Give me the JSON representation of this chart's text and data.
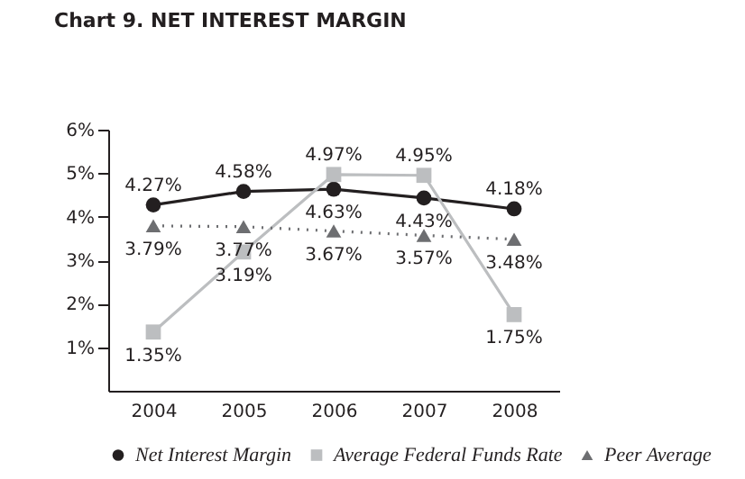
{
  "chart_data": {
    "type": "line",
    "title": "Chart 9. NET INTEREST MARGIN",
    "categories": [
      "2004",
      "2005",
      "2006",
      "2007",
      "2008"
    ],
    "series": [
      {
        "name": "Net Interest Margin",
        "color": "#231f20",
        "marker": "circle",
        "line_style": "solid",
        "values": [
          4.27,
          4.58,
          4.63,
          4.43,
          4.18
        ],
        "value_labels": [
          "4.27%",
          "4.58%",
          "4.63%",
          "4.43%",
          "4.18%"
        ]
      },
      {
        "name": "Average Federal Funds Rate",
        "color": "#bcbec0",
        "marker": "square",
        "line_style": "solid",
        "values": [
          1.35,
          3.19,
          4.97,
          4.95,
          1.75
        ],
        "value_labels": [
          "1.35%",
          "3.19%",
          "4.97%",
          "4.95%",
          "1.75%"
        ]
      },
      {
        "name": "Peer Average",
        "color": "#6d6e71",
        "marker": "triangle",
        "line_style": "dotted",
        "values": [
          3.79,
          3.77,
          3.67,
          3.57,
          3.48
        ],
        "value_labels": [
          "3.79%",
          "3.77%",
          "3.67%",
          "3.57%",
          "3.48%"
        ]
      }
    ],
    "ylim": [
      0,
      6
    ],
    "yticks": [
      {
        "value": 1,
        "label": "1%"
      },
      {
        "value": 2,
        "label": "2%"
      },
      {
        "value": 3,
        "label": "3%"
      },
      {
        "value": 4,
        "label": "4%"
      },
      {
        "value": 5,
        "label": "5%"
      },
      {
        "value": 6,
        "label": "6%"
      }
    ],
    "grid": false,
    "legend": "bottom"
  }
}
